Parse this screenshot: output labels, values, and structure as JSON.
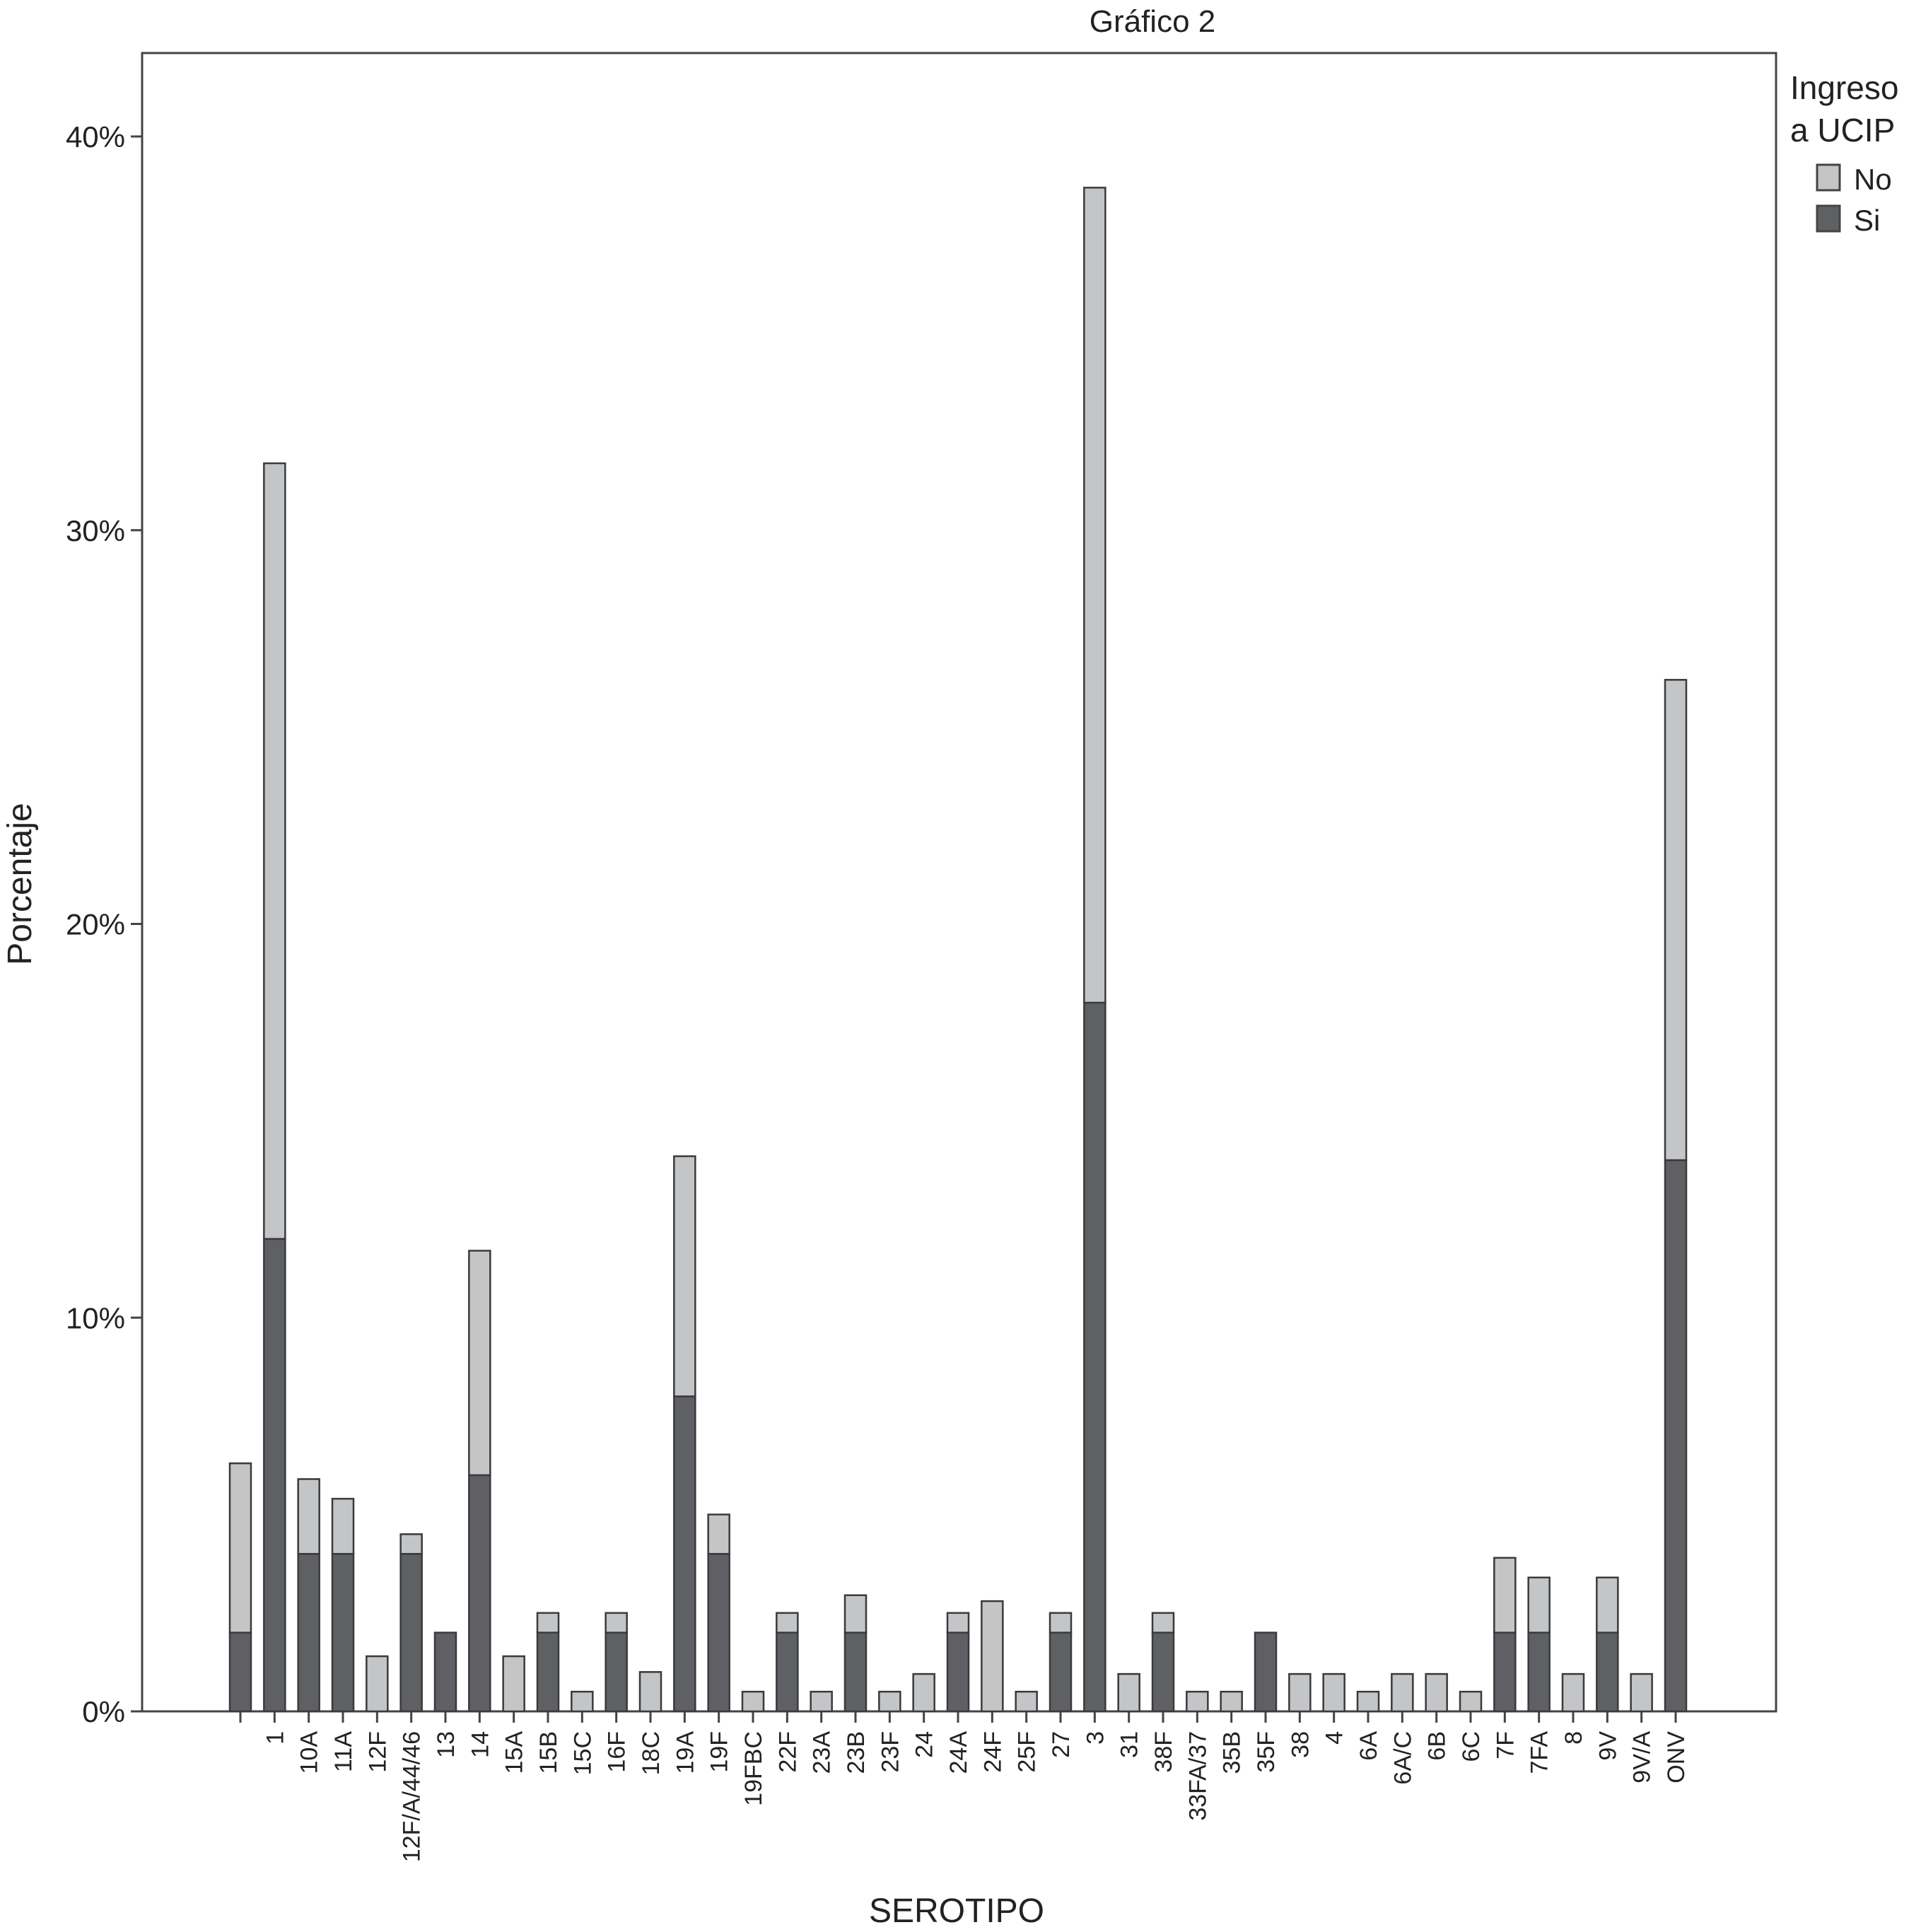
{
  "chart_data": {
    "type": "bar",
    "stacked": true,
    "title": "Gráfico 2",
    "xlabel": "SEROTIPO",
    "ylabel": "Porcentaje",
    "ylim": [
      0,
      42
    ],
    "yticks": [
      0,
      10,
      20,
      30,
      40
    ],
    "ytick_labels": [
      "0%",
      "10%",
      "20%",
      "30%",
      "40%"
    ],
    "grid": false,
    "legend": {
      "title_lines": [
        "Ingreso",
        "a UCIP"
      ],
      "position": "top-right, outside plot"
    },
    "categories": [
      "",
      "1",
      "10A",
      "11A",
      "12F",
      "12F/A/44/46",
      "13",
      "14",
      "15A",
      "15B",
      "15C",
      "16F",
      "18C",
      "19A",
      "19F",
      "19FBC",
      "22F",
      "23A",
      "23B",
      "23F",
      "24",
      "24A",
      "24F",
      "25F",
      "27",
      "3",
      "31",
      "38F",
      "33FA/37",
      "35B",
      "35F",
      "38",
      "4",
      "6A",
      "6A/C",
      "6B",
      "6C",
      "7F",
      "7FA",
      "8",
      "9V",
      "9V/A",
      "ONV"
    ],
    "series": [
      {
        "name": "Si",
        "color": "#5f6063",
        "values": [
          2.0,
          12.0,
          4.0,
          4.0,
          0,
          4.0,
          2.0,
          6.0,
          0,
          2.0,
          0,
          2.0,
          0,
          8.0,
          4.0,
          0,
          2.0,
          0,
          2.0,
          0,
          0,
          2.0,
          0,
          0,
          2.0,
          18.0,
          0,
          2.0,
          0,
          0,
          2.0,
          0,
          0,
          0,
          0,
          0,
          0,
          2.0,
          2.0,
          0,
          2.0,
          0,
          14.0
        ]
      },
      {
        "name": "No",
        "color": "#c4c5c7",
        "values": [
          4.3,
          19.7,
          1.9,
          1.4,
          1.4,
          0.5,
          0,
          5.7,
          1.4,
          0.5,
          0.5,
          0.5,
          1.0,
          6.1,
          1.0,
          0.5,
          0.5,
          0.5,
          0.95,
          0.5,
          0.95,
          0.5,
          2.8,
          0.5,
          0.5,
          20.7,
          0.95,
          0.5,
          0.5,
          0.5,
          0,
          0.95,
          0.95,
          0.5,
          0.95,
          0.95,
          0.5,
          1.9,
          1.4,
          0.95,
          1.4,
          0.95,
          12.2
        ]
      }
    ]
  }
}
